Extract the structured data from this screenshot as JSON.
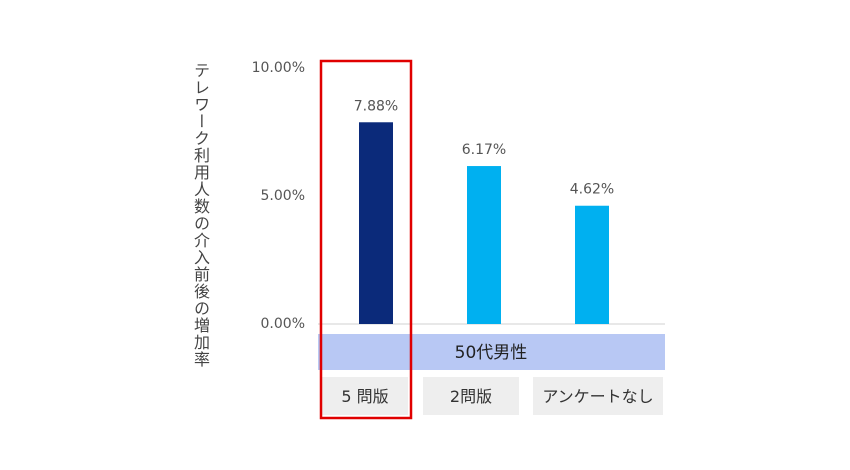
{
  "chart_data": {
    "type": "bar",
    "ylabel": "テレワーク利用人数の介入前後の増加率",
    "yticks": [
      "10.00%",
      "5.00%",
      "0.00%"
    ],
    "ylim": [
      0,
      10
    ],
    "group_label": "50代男性",
    "categories": [
      "5 問版",
      "2問版",
      "アンケートなし"
    ],
    "values": [
      7.88,
      6.17,
      4.62
    ],
    "value_labels": [
      "7.88%",
      "6.17%",
      "4.62%"
    ],
    "bar_colors": [
      "#0b2a7a",
      "#00b0f0",
      "#00b0f0"
    ],
    "highlight_index": 0,
    "highlight_color": "#e00000",
    "group_band_color": "#b8c8f4",
    "category_box_color": "#eeeeee"
  }
}
